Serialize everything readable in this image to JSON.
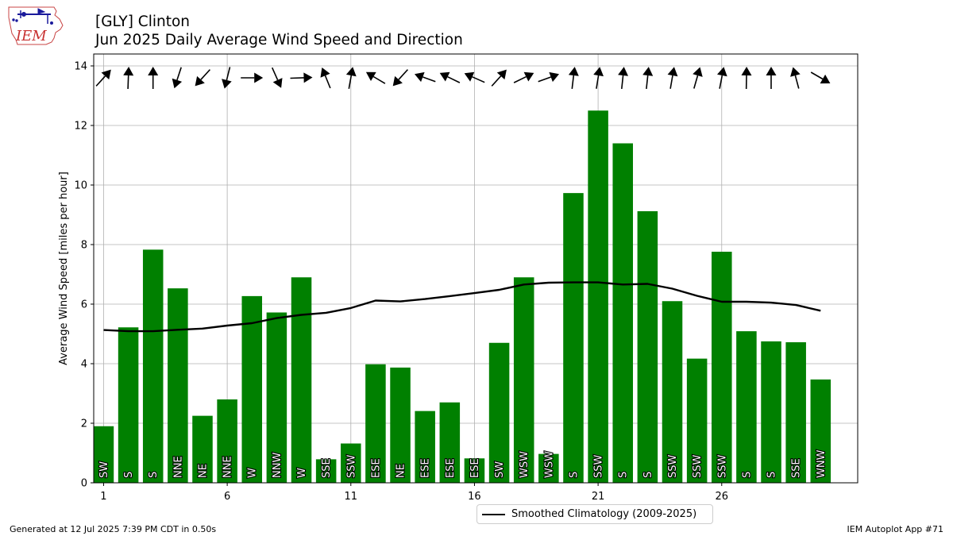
{
  "header": {
    "logo_text": "IEM",
    "title_line1": "[GLY] Clinton",
    "title_line2": "Jun 2025 Daily Average Wind Speed and Direction"
  },
  "footer": {
    "generated": "Generated at 12 Jul 2025 7:39 PM CDT in 0.50s",
    "app": "IEM Autoplot App #71"
  },
  "legend": {
    "climatology_label": "Smoothed Climatology (2009-2025)"
  },
  "colors": {
    "bar": "#008000",
    "climatology_line": "#000000",
    "arrow": "#000000",
    "grid": "#b0b0b0"
  },
  "chart_data": {
    "type": "bar",
    "ylabel": "Average Wind Speed [miles per hour]",
    "xlim": [
      0.6,
      31.5
    ],
    "ylim": [
      0,
      14.4
    ],
    "xticks": [
      1,
      6,
      11,
      16,
      21,
      26
    ],
    "yticks": [
      0,
      2,
      4,
      6,
      8,
      10,
      12,
      14
    ],
    "grid": true,
    "legend_position": "below-center",
    "days": [
      1,
      2,
      3,
      4,
      5,
      6,
      7,
      8,
      9,
      10,
      11,
      12,
      13,
      14,
      15,
      16,
      17,
      18,
      19,
      20,
      21,
      22,
      23,
      24,
      25,
      26,
      27,
      28,
      29,
      30
    ],
    "series": [
      {
        "name": "Average Wind Speed",
        "values": [
          1.9,
          5.22,
          7.83,
          6.53,
          2.25,
          2.8,
          6.27,
          5.72,
          6.9,
          0.79,
          1.32,
          3.98,
          3.87,
          2.41,
          2.7,
          0.82,
          4.7,
          6.9,
          0.97,
          9.73,
          12.5,
          11.4,
          9.12,
          6.1,
          4.17,
          7.76,
          5.09,
          4.75,
          4.72,
          3.47
        ]
      },
      {
        "name": "Smoothed Climatology (2009-2025)",
        "type": "line",
        "values": [
          5.13,
          5.09,
          5.09,
          5.14,
          5.18,
          5.28,
          5.36,
          5.53,
          5.64,
          5.71,
          5.87,
          6.12,
          6.09,
          6.17,
          6.27,
          6.37,
          6.48,
          6.66,
          6.72,
          6.73,
          6.73,
          6.66,
          6.68,
          6.52,
          6.28,
          6.08,
          6.08,
          6.05,
          5.97,
          5.78
        ]
      }
    ],
    "direction_labels": [
      "SW",
      "S",
      "S",
      "NNE",
      "NE",
      "NNE",
      "W",
      "NNW",
      "W",
      "SSE",
      "SSW",
      "ESE",
      "NE",
      "ESE",
      "ESE",
      "ESE",
      "SW",
      "WSW",
      "WSW",
      "S",
      "SSW",
      "S",
      "S",
      "SSW",
      "SSW",
      "SSW",
      "S",
      "S",
      "SSE",
      "WNW"
    ],
    "direction_degrees": [
      222,
      182,
      180,
      18,
      42,
      14,
      270,
      336,
      268,
      158,
      190,
      121,
      42,
      110,
      116,
      114,
      222,
      244,
      250,
      187,
      189,
      186,
      186,
      190,
      196,
      191,
      181,
      180,
      165,
      300
    ]
  }
}
